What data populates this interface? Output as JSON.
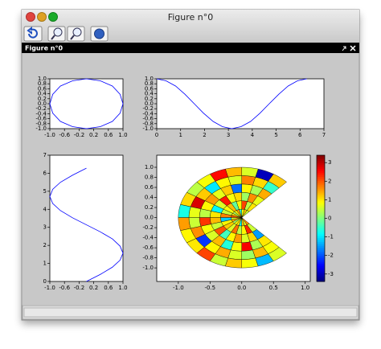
{
  "window": {
    "title": "Figure n°0"
  },
  "panel": {
    "title": "Figure n°0"
  },
  "chart_data": [
    {
      "type": "line",
      "color": "#0000ff",
      "x": [
        1,
        0.92,
        0.71,
        0.38,
        0,
        -0.38,
        -0.71,
        -0.92,
        -1,
        -0.92,
        -0.71,
        -0.38,
        0,
        0.38,
        0.71,
        0.92,
        1
      ],
      "values": [
        0,
        0.38,
        0.71,
        0.92,
        1,
        0.92,
        0.71,
        0.38,
        0,
        -0.38,
        -0.71,
        -0.92,
        -1,
        -0.92,
        -0.71,
        -0.38,
        0
      ],
      "xlim": [
        -1,
        1
      ],
      "ylim": [
        -1,
        1
      ],
      "xticks": [
        {
          "value": -1,
          "label": "-1.0"
        },
        -0.6,
        -0.2,
        0.2,
        0.6,
        {
          "value": 1,
          "label": "1.0"
        }
      ],
      "yticks": [
        {
          "value": 1,
          "label": "1.0"
        },
        0.8,
        0.6,
        0.4,
        0.2,
        {
          "value": 0,
          "label": "0.0"
        },
        -0.2,
        -0.4,
        -0.6,
        -0.8,
        {
          "value": -1,
          "label": "-1.0"
        }
      ]
    },
    {
      "type": "line",
      "color": "#0000ff",
      "x": [
        0,
        0.39,
        0.79,
        1.18,
        1.57,
        1.96,
        2.36,
        2.75,
        3.14,
        3.53,
        3.93,
        4.32,
        4.71,
        5.11,
        5.5,
        5.89,
        6.28
      ],
      "values": [
        1,
        0.92,
        0.71,
        0.38,
        0,
        -0.38,
        -0.71,
        -0.92,
        -1,
        -0.92,
        -0.71,
        -0.38,
        0,
        0.38,
        0.71,
        0.92,
        1
      ],
      "xlim": [
        0,
        7
      ],
      "ylim": [
        -1,
        1
      ],
      "xticks": [
        0,
        1,
        2,
        3,
        4,
        5,
        6,
        7
      ],
      "yticks": [
        {
          "value": 1,
          "label": "1.0"
        },
        0.8,
        0.6,
        0.4,
        0.2,
        {
          "value": 0,
          "label": "0.0"
        },
        -0.2,
        -0.4,
        -0.6,
        -0.8,
        {
          "value": -1,
          "label": "-1.0"
        }
      ]
    },
    {
      "type": "line",
      "color": "#0000ff",
      "x": [
        0,
        0.38,
        0.71,
        0.92,
        1,
        0.92,
        0.71,
        0.38,
        0,
        -0.38,
        -0.71,
        -0.92,
        -1,
        -0.92,
        -0.71,
        -0.38,
        0
      ],
      "values": [
        0,
        0.39,
        0.79,
        1.18,
        1.57,
        1.96,
        2.36,
        2.75,
        3.14,
        3.53,
        3.93,
        4.32,
        4.71,
        5.11,
        5.5,
        5.89,
        6.28
      ],
      "xlim": [
        -1,
        1
      ],
      "ylim": [
        0,
        7
      ],
      "xticks": [
        {
          "value": -1,
          "label": "-1.0"
        },
        -0.6,
        -0.2,
        0.2,
        0.6,
        {
          "value": 1,
          "label": "1.0"
        }
      ],
      "yticks": [
        0,
        1,
        2,
        3,
        4,
        5,
        6,
        7
      ]
    },
    {
      "type": "polar_heatmap",
      "thetalim": [
        45,
        315
      ],
      "rlim": [
        0,
        1
      ],
      "values": [
        [
          0.5,
          1.2,
          0.8,
          -0.5,
          1.5,
          0.9,
          0.3,
          1.1,
          2.0,
          0.6,
          1.4,
          0.2,
          0.8,
          1.0,
          -0.8,
          1.3,
          0.7,
          1.6
        ],
        [
          1.0,
          0.4,
          2.1,
          0.9,
          -0.2,
          1.3,
          0.8,
          0.5,
          1.7,
          -1.2,
          0.9,
          1.2,
          0.6,
          1.8,
          0.4,
          0.9,
          2.3,
          0.5
        ],
        [
          0.7,
          1.6,
          0.2,
          1.1,
          0.8,
          2.4,
          0.6,
          -0.9,
          1.0,
          1.3,
          0.5,
          2.0,
          -0.4,
          0.9,
          1.5,
          0.6,
          1.1,
          -1.5
        ],
        [
          1.4,
          0.3,
          0.9,
          -1.8,
          1.2,
          0.7,
          1.5,
          0.9,
          0.4,
          2.2,
          0.8,
          0.6,
          1.3,
          -0.6,
          0.8,
          2.6,
          0.3,
          1.0
        ],
        [
          -0.5,
          1.1,
          1.7,
          0.6,
          0.9,
          -1.0,
          1.2,
          2.8,
          0.7,
          0.5,
          1.6,
          -2.2,
          0.9,
          1.4,
          0.6,
          0.2,
          1.3,
          0.8
        ],
        [
          1.2,
          -3.0,
          0.6,
          1.3,
          2.5,
          0.8,
          0.4,
          1.1,
          -0.7,
          1.5,
          0.9,
          1.0,
          2.1,
          0.5,
          1.2,
          0.8,
          -1.3,
          0.6
        ]
      ],
      "xlim": [
        -1.34,
        1.08
      ],
      "ylim": [
        -1.27,
        1.24
      ],
      "xticks": [
        {
          "value": -1,
          "label": "-1.0"
        },
        -0.5,
        {
          "value": 0,
          "label": "0.0"
        },
        0.5,
        {
          "value": 1,
          "label": "1.0"
        }
      ],
      "yticks": [
        {
          "value": 1,
          "label": "1.0"
        },
        0.8,
        0.6,
        0.4,
        0.2,
        {
          "value": 0,
          "label": "0.0"
        },
        -0.2,
        -0.4,
        -0.6,
        -0.8,
        {
          "value": -1,
          "label": "-1.0"
        }
      ],
      "colormap": "jet",
      "clim": [
        -3.4,
        3.4
      ],
      "cticks": [
        3,
        2,
        1,
        0,
        -1,
        -2,
        -3
      ]
    }
  ]
}
